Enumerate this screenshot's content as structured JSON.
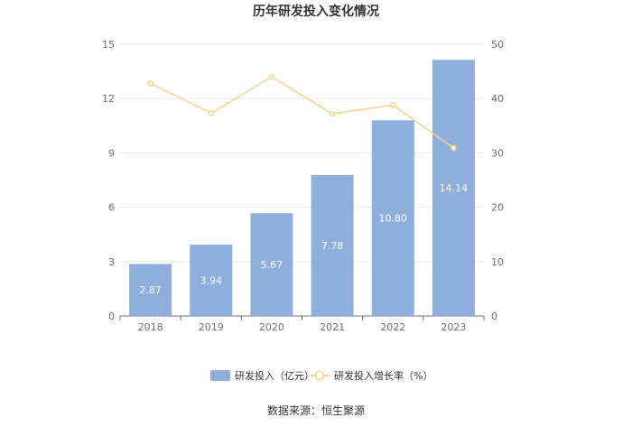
{
  "title": "历年研发投入变化情况",
  "source": "数据来源：恒生聚源",
  "colors": {
    "bar": "#8eaedc",
    "line": "#fbd08c",
    "grid": "#e6e9ef",
    "axis": "#6e7079"
  },
  "chart_data": {
    "type": "bar",
    "title": "历年研发投入变化情况",
    "categories": [
      "2018",
      "2019",
      "2020",
      "2021",
      "2022",
      "2023"
    ],
    "series": [
      {
        "name": "研发投入（亿元）",
        "type": "bar",
        "axis": "left",
        "values": [
          2.87,
          3.94,
          5.67,
          7.78,
          10.8,
          14.14
        ],
        "labels": [
          "2.87",
          "3.94",
          "5.67",
          "7.78",
          "10.80",
          "14.14"
        ]
      },
      {
        "name": "研发投入增长率（%）",
        "type": "line",
        "axis": "right",
        "values": [
          42.8,
          37.3,
          44.0,
          37.2,
          38.8,
          30.9
        ]
      }
    ],
    "y_left": {
      "ylim": [
        0,
        15
      ],
      "ticks": [
        "0",
        "3",
        "6",
        "9",
        "12",
        "15"
      ]
    },
    "y_right": {
      "ylim": [
        0,
        50
      ],
      "ticks": [
        "0",
        "10",
        "20",
        "30",
        "40",
        "50"
      ]
    },
    "grid": true,
    "legend": "bottom"
  }
}
